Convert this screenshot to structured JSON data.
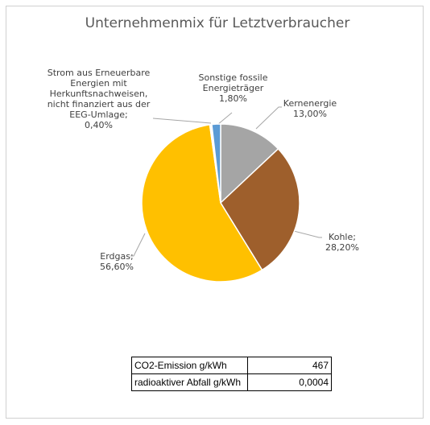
{
  "chart_data": {
    "type": "pie",
    "title": "Unternehmenmix für Letztverbraucher",
    "categories": [
      "Kernenergie",
      "Kohle;",
      "Erdgas;",
      "Strom aus Erneuerbare Energien mit Herkunftsnachweisen, nicht finanziert aus der EEG-Umlage;",
      "Sonstige fossile Energieträger"
    ],
    "values": [
      13.0,
      28.2,
      56.6,
      0.4,
      1.8
    ],
    "value_labels": [
      "13,00%",
      "28,20%",
      "56,60%",
      "0,40%",
      "1,80%"
    ],
    "colors": [
      "#a5a5a5",
      "#9e5f2c",
      "#ffc000",
      "#ffffff",
      "#5b9bd5"
    ]
  },
  "table": {
    "rows": [
      [
        "CO2-Emission g/kWh",
        "467"
      ],
      [
        "radioaktiver Abfall g/kWh",
        "0,0004"
      ]
    ]
  }
}
